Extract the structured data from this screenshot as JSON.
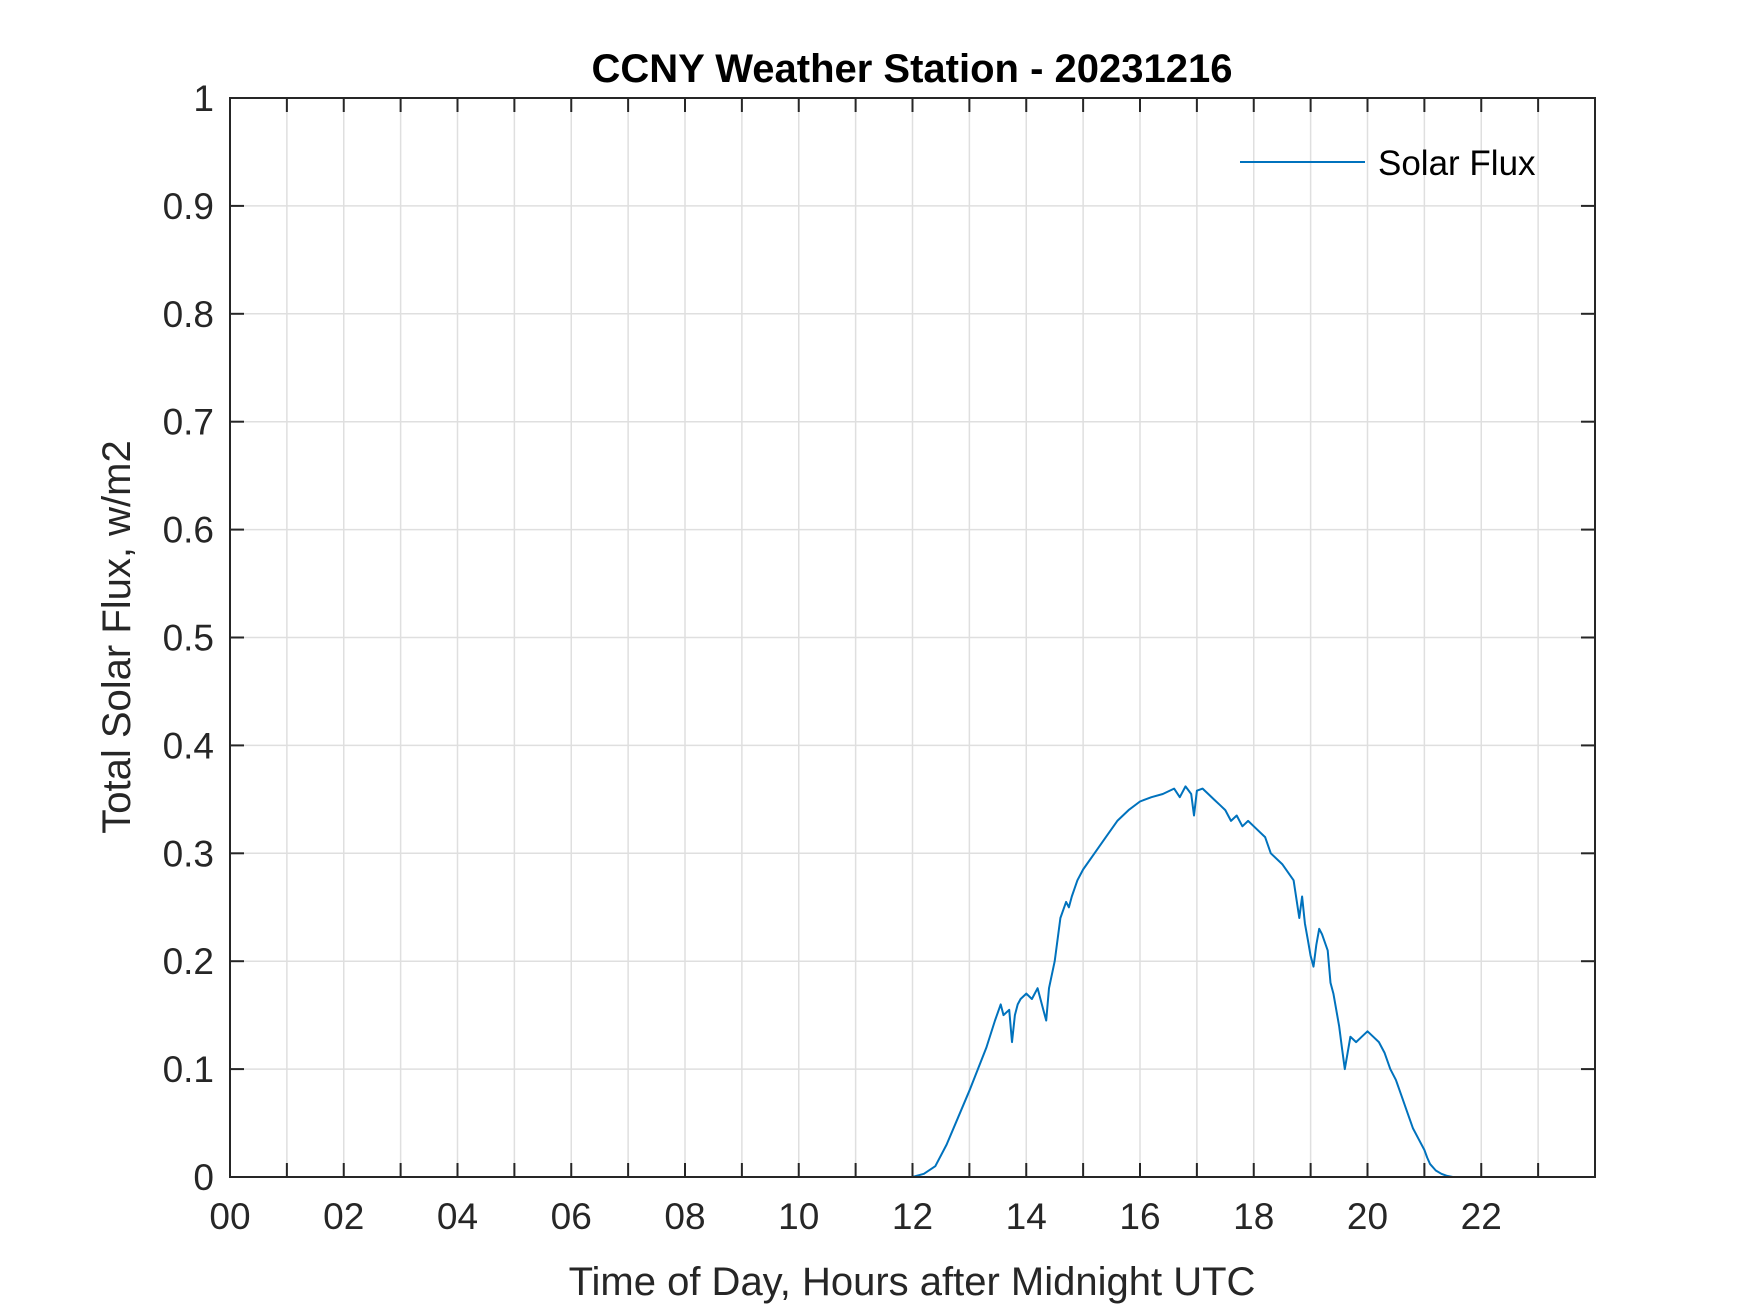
{
  "chart_data": {
    "type": "line",
    "title": "CCNY Weather Station - 20231216",
    "xlabel": "Time of Day, Hours after Midnight UTC",
    "ylabel": "Total Solar Flux, w/m2",
    "xlim": [
      0,
      24
    ],
    "ylim": [
      0,
      1
    ],
    "x_ticks": [
      "00",
      "02",
      "04",
      "06",
      "08",
      "10",
      "12",
      "14",
      "16",
      "18",
      "20",
      "22"
    ],
    "x_tick_values": [
      0,
      2,
      4,
      6,
      8,
      10,
      12,
      14,
      16,
      18,
      20,
      22
    ],
    "y_ticks": [
      "0",
      "0.1",
      "0.2",
      "0.3",
      "0.4",
      "0.5",
      "0.6",
      "0.7",
      "0.8",
      "0.9",
      "1"
    ],
    "y_tick_values": [
      0,
      0.1,
      0.2,
      0.3,
      0.4,
      0.5,
      0.6,
      0.7,
      0.8,
      0.9,
      1
    ],
    "grid": true,
    "legend_position": "top-right",
    "series": [
      {
        "name": "Solar Flux",
        "color": "#0072BD",
        "x": [
          0,
          12.0,
          12.2,
          12.4,
          12.6,
          12.8,
          13.0,
          13.15,
          13.3,
          13.45,
          13.55,
          13.6,
          13.7,
          13.75,
          13.8,
          13.85,
          13.9,
          14.0,
          14.1,
          14.2,
          14.3,
          14.35,
          14.4,
          14.5,
          14.6,
          14.7,
          14.75,
          14.8,
          14.9,
          15.0,
          15.2,
          15.4,
          15.6,
          15.8,
          16.0,
          16.2,
          16.4,
          16.6,
          16.7,
          16.8,
          16.9,
          16.95,
          17.0,
          17.1,
          17.2,
          17.3,
          17.4,
          17.5,
          17.6,
          17.7,
          17.8,
          17.9,
          18.0,
          18.1,
          18.2,
          18.3,
          18.5,
          18.7,
          18.8,
          18.85,
          18.9,
          18.95,
          19.0,
          19.05,
          19.1,
          19.15,
          19.2,
          19.3,
          19.35,
          19.4,
          19.5,
          19.55,
          19.6,
          19.65,
          19.7,
          19.8,
          19.9,
          20.0,
          20.1,
          20.2,
          20.3,
          20.4,
          20.5,
          20.6,
          20.7,
          20.8,
          20.9,
          21.0,
          21.05,
          21.1,
          21.2,
          21.3,
          21.4,
          21.5,
          21.6,
          21.7,
          22.0,
          24.0
        ],
        "values": [
          0,
          0,
          0.003,
          0.01,
          0.03,
          0.055,
          0.08,
          0.1,
          0.12,
          0.145,
          0.16,
          0.15,
          0.155,
          0.125,
          0.15,
          0.16,
          0.165,
          0.17,
          0.165,
          0.175,
          0.155,
          0.145,
          0.175,
          0.2,
          0.24,
          0.255,
          0.25,
          0.26,
          0.275,
          0.285,
          0.3,
          0.315,
          0.33,
          0.34,
          0.348,
          0.352,
          0.355,
          0.36,
          0.352,
          0.362,
          0.355,
          0.335,
          0.358,
          0.36,
          0.355,
          0.35,
          0.345,
          0.34,
          0.33,
          0.335,
          0.325,
          0.33,
          0.325,
          0.32,
          0.315,
          0.3,
          0.29,
          0.275,
          0.24,
          0.26,
          0.235,
          0.22,
          0.205,
          0.195,
          0.215,
          0.23,
          0.225,
          0.21,
          0.18,
          0.17,
          0.14,
          0.12,
          0.1,
          0.115,
          0.13,
          0.125,
          0.13,
          0.135,
          0.13,
          0.125,
          0.115,
          0.1,
          0.09,
          0.075,
          0.06,
          0.045,
          0.035,
          0.025,
          0.018,
          0.012,
          0.006,
          0.003,
          0.001,
          0,
          0,
          0,
          0,
          0
        ]
      }
    ]
  }
}
